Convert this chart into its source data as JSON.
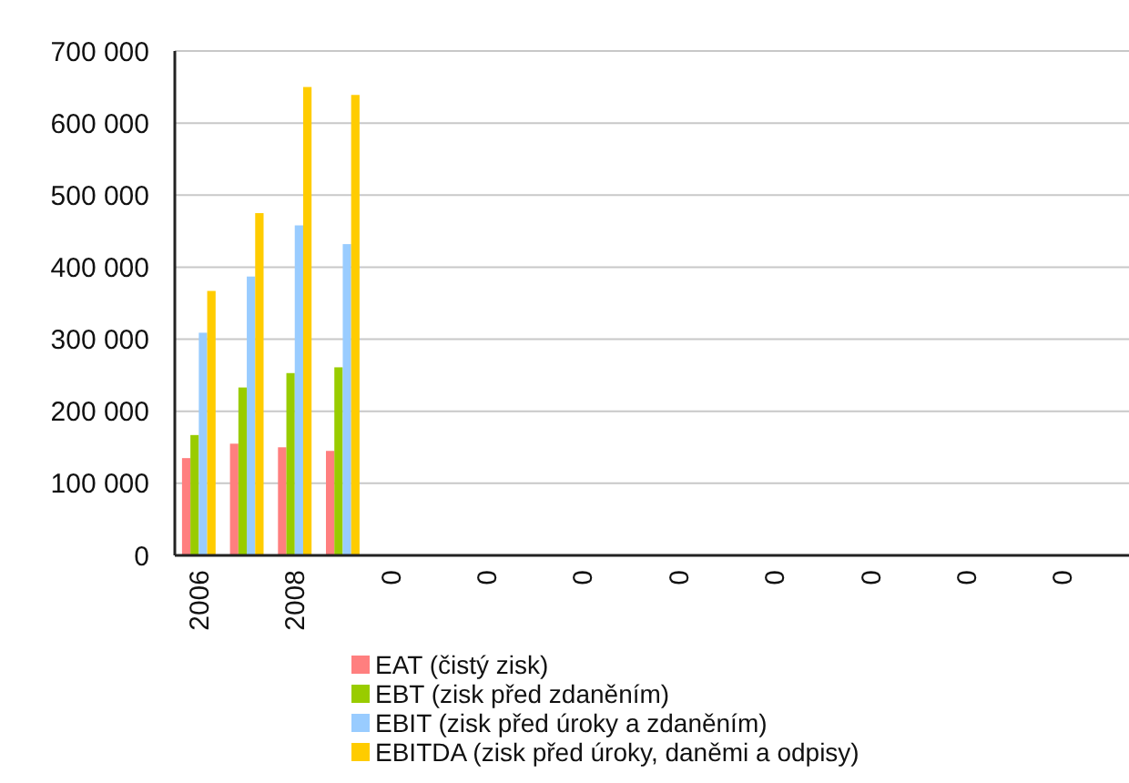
{
  "chart_data": {
    "type": "bar",
    "categories": [
      "2006",
      null,
      "2008",
      null,
      "0",
      null,
      "0",
      null,
      "0",
      null,
      "0",
      null,
      "0",
      null,
      "0",
      null,
      "0",
      null,
      "0",
      null
    ],
    "series": [
      {
        "name": "EAT (čistý zisk)",
        "color": "#ff7f7f",
        "values": [
          135000,
          155000,
          150000,
          145000,
          null,
          null,
          null,
          null,
          null,
          null,
          null,
          null,
          null,
          null,
          null,
          null,
          null,
          null,
          null,
          null
        ]
      },
      {
        "name": "EBT (zisk před zdaněním)",
        "color": "#99cc00",
        "values": [
          167000,
          233000,
          253000,
          261000,
          null,
          null,
          null,
          null,
          null,
          null,
          null,
          null,
          null,
          null,
          null,
          null,
          null,
          null,
          null,
          null
        ]
      },
      {
        "name": "EBIT (zisk před úroky a zdaněním)",
        "color": "#99ccff",
        "values": [
          309000,
          387000,
          458000,
          432000,
          null,
          null,
          null,
          null,
          null,
          null,
          null,
          null,
          null,
          null,
          null,
          null,
          null,
          null,
          null,
          null
        ]
      },
      {
        "name": "EBITDA (zisk před úroky, daněmi a odpisy)",
        "color": "#ffcc00",
        "values": [
          367000,
          475000,
          650000,
          639000,
          null,
          null,
          null,
          null,
          null,
          null,
          null,
          null,
          null,
          null,
          null,
          null,
          null,
          null,
          null,
          null
        ]
      }
    ],
    "ylim": [
      0,
      700000
    ],
    "yticks": [
      {
        "value": 0,
        "label": "0"
      },
      {
        "value": 100000,
        "label": "100 000"
      },
      {
        "value": 200000,
        "label": "200 000"
      },
      {
        "value": 300000,
        "label": "300 000"
      },
      {
        "value": 400000,
        "label": "400 000"
      },
      {
        "value": 500000,
        "label": "500 000"
      },
      {
        "value": 600000,
        "label": "600 000"
      },
      {
        "value": 700000,
        "label": "700 000"
      }
    ],
    "grid": "y",
    "legend": "bottom"
  }
}
